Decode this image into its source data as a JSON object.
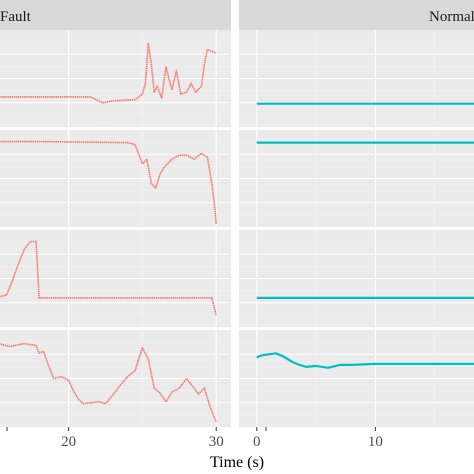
{
  "chart_data": {
    "type": "line",
    "title": "",
    "xlabel": "Time (s)",
    "ylabel": "",
    "grid": true,
    "legend": "none",
    "facets": [
      {
        "strip": "Fault",
        "color": "#F8766D",
        "xlim": [
          14,
          31
        ],
        "xticks": [
          20,
          30
        ],
        "rows": [
          {
            "ylim": [
              0,
              10
            ],
            "points": [
              [
                14,
                3.1
              ],
              [
                17,
                3.1
              ],
              [
                21.5,
                3.1
              ],
              [
                22.3,
                2.5
              ],
              [
                23,
                2.7
              ],
              [
                24.5,
                2.8
              ],
              [
                25,
                3.4
              ],
              [
                25.2,
                4.5
              ],
              [
                25.4,
                8.6
              ],
              [
                25.6,
                6.5
              ],
              [
                25.8,
                3.6
              ],
              [
                26,
                4.2
              ],
              [
                26.3,
                3.0
              ],
              [
                26.6,
                6.2
              ],
              [
                27,
                3.8
              ],
              [
                27.3,
                5.8
              ],
              [
                27.6,
                3.4
              ],
              [
                28,
                3.6
              ],
              [
                28.3,
                4.5
              ],
              [
                28.6,
                3.6
              ],
              [
                29,
                4.2
              ],
              [
                29.2,
                6.5
              ],
              [
                29.4,
                8.0
              ],
              [
                29.7,
                7.8
              ],
              [
                30,
                7.6
              ]
            ]
          },
          {
            "ylim": [
              0,
              10
            ],
            "points": [
              [
                14,
                8.8
              ],
              [
                18,
                8.8
              ],
              [
                24,
                8.7
              ],
              [
                24.5,
                8.5
              ],
              [
                25,
                6.5
              ],
              [
                25.3,
                7.0
              ],
              [
                25.6,
                4.5
              ],
              [
                25.9,
                4.0
              ],
              [
                26.2,
                5.5
              ],
              [
                26.5,
                6.2
              ],
              [
                27,
                7.0
              ],
              [
                27.5,
                7.4
              ],
              [
                28,
                7.4
              ],
              [
                28.5,
                7.0
              ],
              [
                29,
                7.6
              ],
              [
                29.4,
                7.2
              ],
              [
                29.7,
                4.5
              ],
              [
                29.9,
                2.0
              ],
              [
                30,
                0.3
              ]
            ]
          },
          {
            "ylim": [
              0,
              10
            ],
            "points": [
              [
                14,
                3.0
              ],
              [
                15,
                3.0
              ],
              [
                15.8,
                3.3
              ],
              [
                16.2,
                4.8
              ],
              [
                16.6,
                6.5
              ],
              [
                17,
                8.0
              ],
              [
                17.4,
                8.8
              ],
              [
                17.8,
                8.8
              ],
              [
                18,
                3.0
              ],
              [
                21,
                3.0
              ],
              [
                25,
                3.0
              ],
              [
                29.7,
                3.0
              ],
              [
                30,
                1.2
              ]
            ]
          },
          {
            "ylim": [
              0,
              10
            ],
            "points": [
              [
                14,
                8.5
              ],
              [
                15,
                8.7
              ],
              [
                16,
                8.3
              ],
              [
                17,
                8.6
              ],
              [
                17.8,
                8.4
              ],
              [
                18,
                7.6
              ],
              [
                18.3,
                7.8
              ],
              [
                18.6,
                6.5
              ],
              [
                19,
                5.0
              ],
              [
                19.5,
                5.2
              ],
              [
                20,
                4.8
              ],
              [
                20.3,
                3.8
              ],
              [
                20.7,
                2.8
              ],
              [
                21,
                2.4
              ],
              [
                21.5,
                2.5
              ],
              [
                22,
                2.6
              ],
              [
                22.5,
                2.4
              ],
              [
                23,
                3.3
              ],
              [
                23.5,
                4.3
              ],
              [
                24,
                5.2
              ],
              [
                24.5,
                5.8
              ],
              [
                25,
                8.2
              ],
              [
                25.4,
                7.0
              ],
              [
                25.8,
                4.0
              ],
              [
                26.2,
                3.5
              ],
              [
                26.6,
                2.6
              ],
              [
                27,
                3.6
              ],
              [
                27.5,
                4.0
              ],
              [
                28,
                5.0
              ],
              [
                28.4,
                4.2
              ],
              [
                28.8,
                3.4
              ],
              [
                29.2,
                4.0
              ],
              [
                29.6,
                2.0
              ],
              [
                30,
                0.5
              ]
            ]
          }
        ]
      },
      {
        "strip": "Normal",
        "color": "#00BFC4",
        "xlim": [
          -1.5,
          20
        ],
        "xticks": [
          0,
          10
        ],
        "rows": [
          {
            "ylim": [
              0,
              10
            ],
            "points": [
              [
                0,
                2.4
              ],
              [
                20,
                2.4
              ]
            ]
          },
          {
            "ylim": [
              0,
              10
            ],
            "points": [
              [
                0,
                8.7
              ],
              [
                20,
                8.7
              ]
            ]
          },
          {
            "ylim": [
              0,
              10
            ],
            "points": [
              [
                0,
                3.0
              ],
              [
                20,
                3.0
              ]
            ]
          },
          {
            "ylim": [
              0,
              10
            ],
            "points": [
              [
                0,
                7.2
              ],
              [
                0.5,
                7.4
              ],
              [
                1,
                7.5
              ],
              [
                1.6,
                7.6
              ],
              [
                2.2,
                7.3
              ],
              [
                3,
                6.7
              ],
              [
                3.6,
                6.4
              ],
              [
                4.2,
                6.2
              ],
              [
                5,
                6.3
              ],
              [
                6,
                6.1
              ],
              [
                7,
                6.4
              ],
              [
                8,
                6.4
              ],
              [
                10,
                6.5
              ],
              [
                14,
                6.5
              ],
              [
                20,
                6.5
              ]
            ]
          }
        ]
      }
    ]
  }
}
